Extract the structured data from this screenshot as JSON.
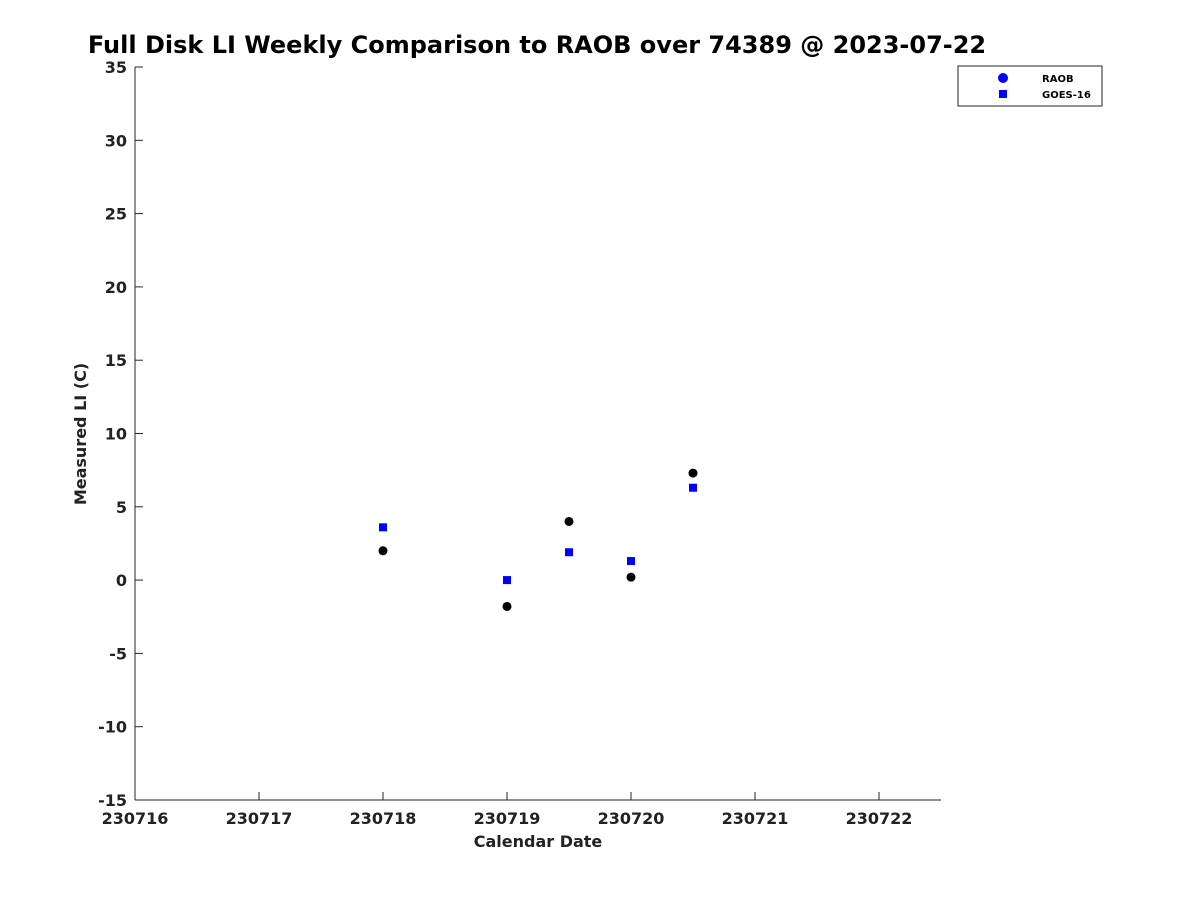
{
  "chart_data": {
    "type": "scatter",
    "title": "Full Disk LI Weekly Comparison to RAOB over 74389 @ 2023-07-22",
    "xlabel": "Calendar Date",
    "ylabel": "Measured LI (C)",
    "xlim": [
      230716,
      230722.5
    ],
    "ylim": [
      -15,
      35
    ],
    "x_ticks": [
      230716,
      230717,
      230718,
      230719,
      230720,
      230721,
      230722
    ],
    "x_tick_labels": [
      "230716",
      "230717",
      "230718",
      "230719",
      "230720",
      "230721",
      "230722"
    ],
    "y_ticks": [
      -15,
      -10,
      -5,
      0,
      5,
      10,
      15,
      20,
      25,
      30,
      35
    ],
    "y_tick_labels": [
      "-15",
      "-10",
      "-5",
      "0",
      "5",
      "10",
      "15",
      "20",
      "25",
      "30",
      "35"
    ],
    "grid": false,
    "legend_position": "top-right",
    "series": [
      {
        "name": "RAOB",
        "marker": "circle",
        "color": "#000000",
        "legend_color": "#0000ff",
        "points": [
          {
            "x": 230718,
            "y": 2.0
          },
          {
            "x": 230719,
            "y": -1.8
          },
          {
            "x": 230719.5,
            "y": 4.0
          },
          {
            "x": 230720,
            "y": 0.2
          },
          {
            "x": 230720.5,
            "y": 7.3
          }
        ]
      },
      {
        "name": "GOES-16",
        "marker": "square",
        "color": "#0000ff",
        "legend_color": "#0000ff",
        "points": [
          {
            "x": 230718,
            "y": 3.6
          },
          {
            "x": 230719,
            "y": 0.0
          },
          {
            "x": 230719.5,
            "y": 1.9
          },
          {
            "x": 230720,
            "y": 1.3
          },
          {
            "x": 230720.5,
            "y": 6.3
          }
        ]
      }
    ]
  }
}
